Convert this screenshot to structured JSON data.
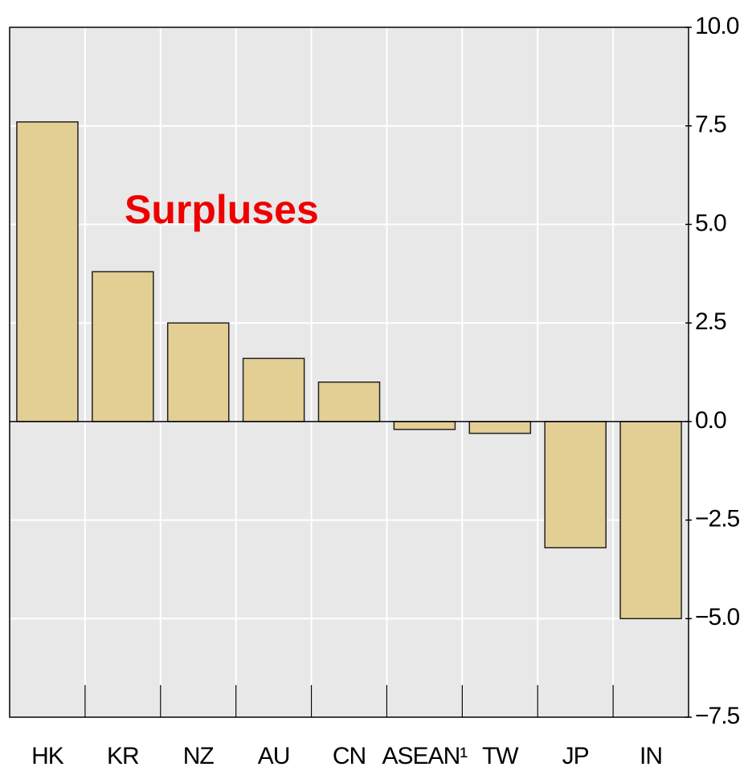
{
  "chart_data": {
    "type": "bar",
    "annotation": "Surpluses",
    "categories": [
      "HK",
      "KR",
      "NZ",
      "AU",
      "CN",
      "ASEAN¹",
      "TW",
      "JP",
      "IN"
    ],
    "values": [
      7.6,
      3.8,
      2.5,
      1.6,
      1.0,
      -0.2,
      -0.3,
      -3.2,
      -5.0
    ],
    "color": "#e3cf94",
    "ylim": [
      -7.5,
      10
    ],
    "yticks": [
      {
        "value": -7.5,
        "label": "−7.5"
      },
      {
        "value": -5,
        "label": "−5.0"
      },
      {
        "value": -2.5,
        "label": "−2.5"
      },
      {
        "value": 0,
        "label": "0.0"
      },
      2.5,
      {
        "value": 5,
        "label": "5.0"
      },
      7.5,
      {
        "value": 10,
        "label": "10.0"
      }
    ],
    "grid": true
  }
}
